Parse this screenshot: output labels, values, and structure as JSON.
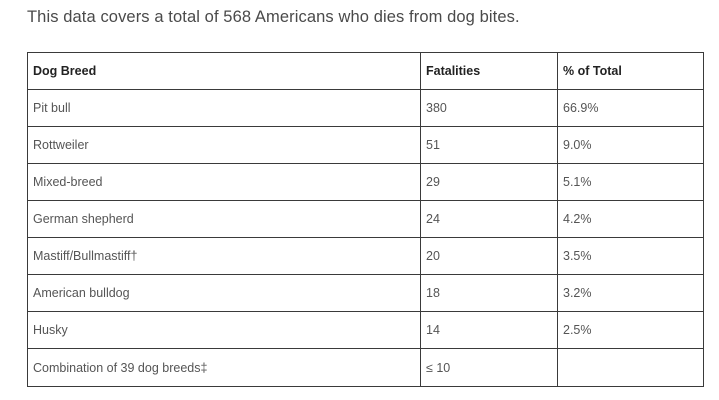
{
  "intro_text": "This data covers a total of 568 Americans who dies from dog bites.",
  "table": {
    "headers": [
      "Dog Breed",
      "Fatalities",
      "% of Total"
    ],
    "rows": [
      [
        "Pit bull",
        "380",
        "66.9%"
      ],
      [
        "Rottweiler",
        "51",
        "9.0%"
      ],
      [
        "Mixed-breed",
        "29",
        "5.1%"
      ],
      [
        "German shepherd",
        "24",
        "4.2%"
      ],
      [
        "Mastiff/Bullmastiff†",
        "20",
        "3.5%"
      ],
      [
        "American bulldog",
        "18",
        "3.2%"
      ],
      [
        "Husky",
        "14",
        "2.5%"
      ],
      [
        "Combination of 39 dog breeds‡",
        "≤ 10",
        ""
      ]
    ]
  }
}
